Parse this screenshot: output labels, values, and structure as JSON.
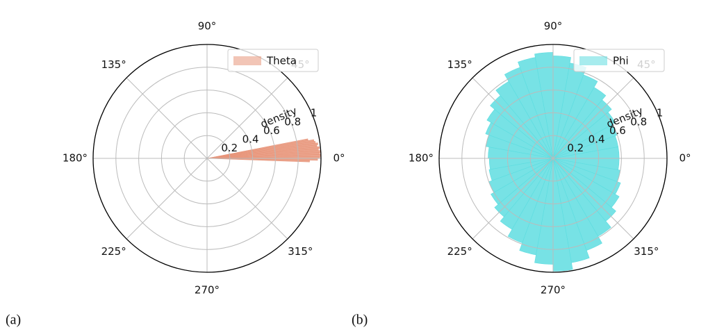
{
  "chart_data": [
    {
      "type": "polar",
      "caption": "(a)",
      "y_label": "density",
      "legend": "upper right",
      "grid": true,
      "xticks": [
        {
          "value": 0,
          "label": "0°"
        },
        {
          "value": 45,
          "label": "45°"
        },
        {
          "value": 90,
          "label": "90°"
        },
        {
          "value": 135,
          "label": "135°"
        },
        {
          "value": 180,
          "label": "180°"
        },
        {
          "value": 225,
          "label": "225°"
        },
        {
          "value": 270,
          "label": "270°"
        },
        {
          "value": 315,
          "label": "315°"
        }
      ],
      "ylim": [
        0,
        1.0
      ],
      "yticks": [
        0.2,
        0.4,
        0.6,
        0.8,
        1.0
      ],
      "series": [
        {
          "name": "Theta",
          "color": "#e8957a",
          "x": [
            -2,
            -1,
            0,
            1,
            2,
            3,
            4,
            5,
            6,
            7,
            8,
            9,
            10
          ],
          "values": [
            0.9,
            0.97,
            0.99,
            1.0,
            0.99,
            1.0,
            0.98,
            0.99,
            0.97,
            0.98,
            0.96,
            0.95,
            0.9
          ]
        }
      ]
    },
    {
      "type": "polar",
      "caption": "(b)",
      "y_label": "density",
      "legend": "upper right",
      "grid": true,
      "xticks": [
        {
          "value": 0,
          "label": "0°"
        },
        {
          "value": 45,
          "label": "45°"
        },
        {
          "value": 90,
          "label": "90°"
        },
        {
          "value": 135,
          "label": "135°"
        },
        {
          "value": 180,
          "label": "180°"
        },
        {
          "value": 225,
          "label": "225°"
        },
        {
          "value": 270,
          "label": "270°"
        },
        {
          "value": 315,
          "label": "315°"
        }
      ],
      "ylim": [
        0,
        1.0
      ],
      "yticks": [
        0.2,
        0.4,
        0.6,
        0.8,
        1.0
      ],
      "series": [
        {
          "name": "Phi",
          "color": "#5fdde0",
          "x": [
            0,
            10,
            20,
            30,
            40,
            50,
            60,
            70,
            80,
            90,
            100,
            110,
            120,
            130,
            140,
            150,
            160,
            170,
            180,
            190,
            200,
            210,
            220,
            230,
            240,
            250,
            260,
            270,
            280,
            290,
            300,
            310,
            320,
            330,
            340,
            350
          ],
          "values": [
            0.58,
            0.58,
            0.6,
            0.63,
            0.67,
            0.72,
            0.78,
            0.85,
            0.9,
            0.93,
            0.9,
            0.85,
            0.78,
            0.72,
            0.67,
            0.63,
            0.6,
            0.57,
            0.56,
            0.57,
            0.6,
            0.63,
            0.67,
            0.72,
            0.79,
            0.86,
            0.93,
            0.99,
            0.93,
            0.86,
            0.79,
            0.72,
            0.67,
            0.63,
            0.6,
            0.58
          ]
        }
      ]
    }
  ]
}
